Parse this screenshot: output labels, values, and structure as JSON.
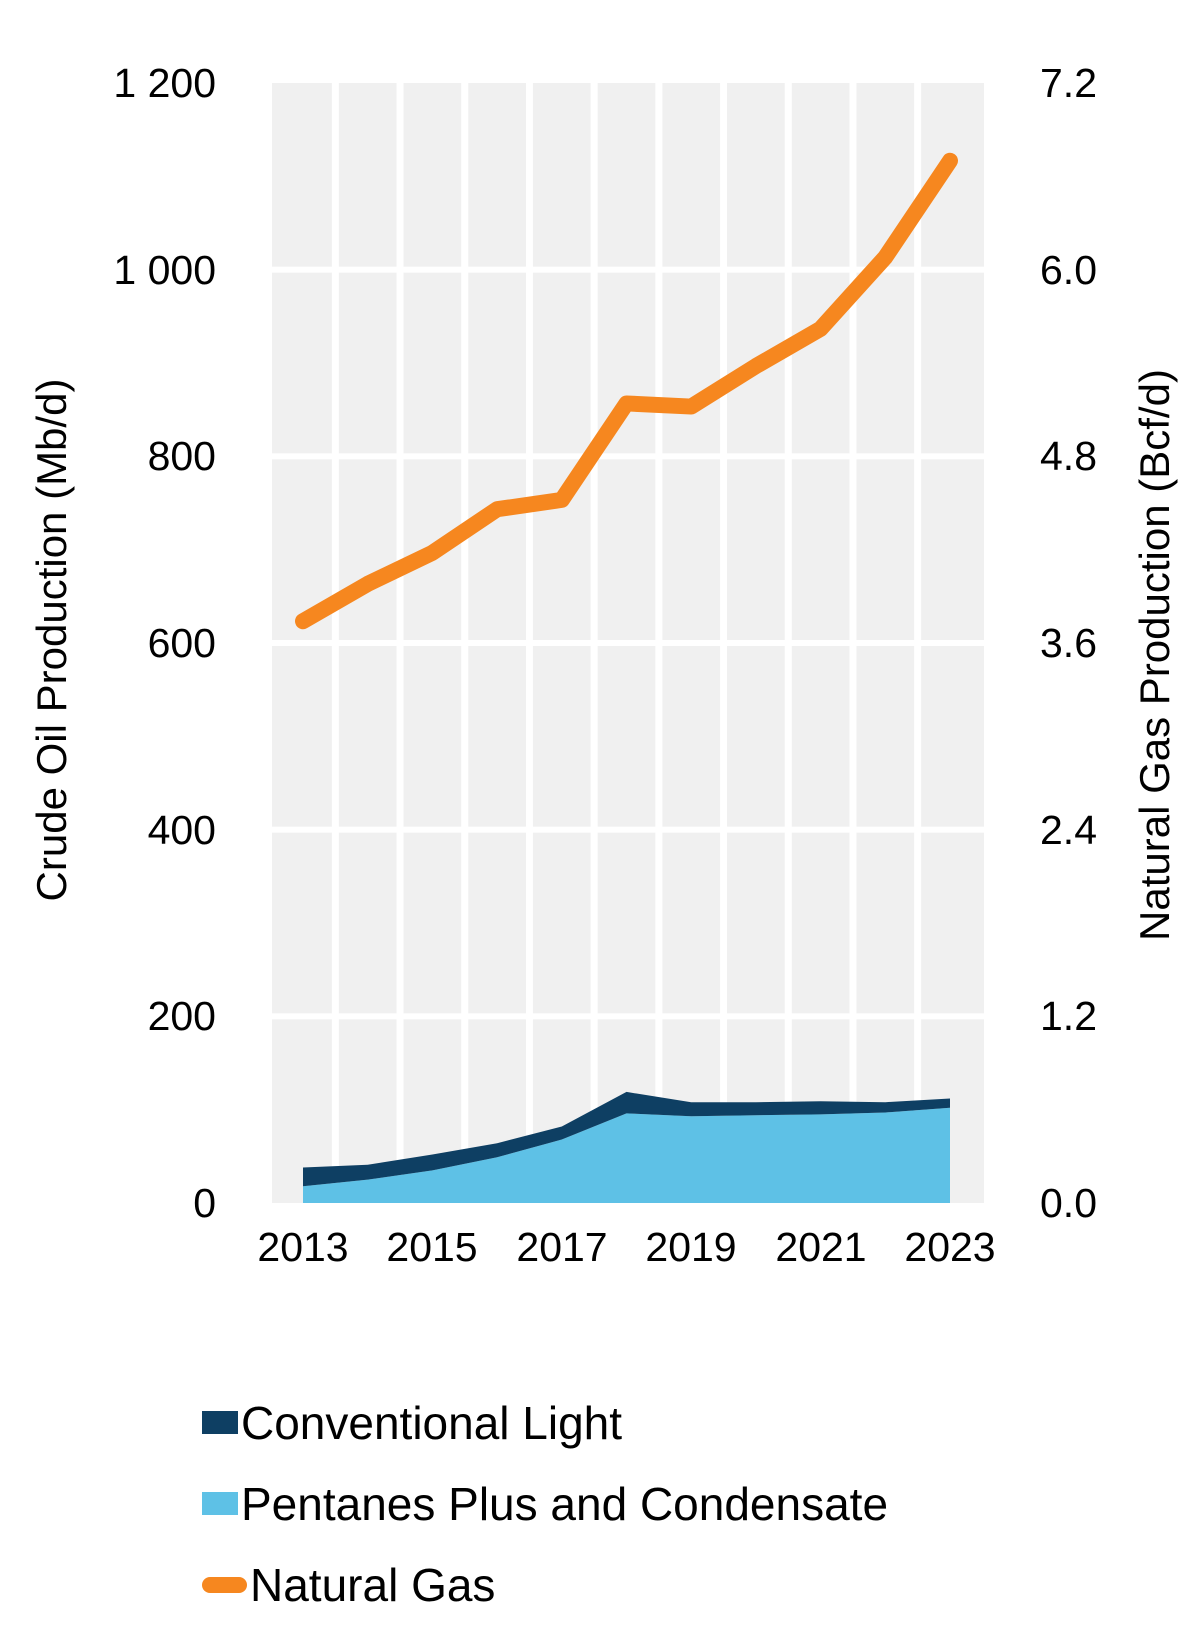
{
  "chart_data": {
    "type": "combo",
    "subtypes": [
      "stacked-area",
      "line"
    ],
    "x": [
      2013,
      2014,
      2015,
      2016,
      2017,
      2018,
      2019,
      2020,
      2021,
      2022,
      2023
    ],
    "x_tick_labels": [
      "2013",
      "2015",
      "2017",
      "2019",
      "2021",
      "2023"
    ],
    "left_axis": {
      "title": "Crude Oil Production (Mb/d)",
      "tick_labels": [
        "1 200",
        "1 000",
        "800",
        "600",
        "400",
        "200",
        "0"
      ],
      "tick_values": [
        1200,
        1000,
        800,
        600,
        400,
        200,
        0
      ],
      "range": [
        0,
        1200
      ]
    },
    "right_axis": {
      "title": "Natural Gas Production (Bcf/d)",
      "tick_labels": [
        "7.2",
        "6.0",
        "4.8",
        "3.6",
        "2.4",
        "1.2",
        "0.0"
      ],
      "tick_values": [
        7.2,
        6.0,
        4.8,
        3.6,
        2.4,
        1.2,
        0.0
      ],
      "range": [
        0,
        7.2
      ]
    },
    "series": [
      {
        "name": "Conventional Light",
        "type": "area",
        "axis": "left",
        "stack": "crude",
        "stack_order": 1,
        "color": "#0E3F63",
        "values": [
          20,
          16,
          17,
          15,
          14,
          23,
          15,
          14,
          14,
          11,
          10
        ]
      },
      {
        "name": "Pentanes Plus and Condensate",
        "type": "area",
        "axis": "left",
        "stack": "crude",
        "stack_order": 0,
        "color": "#5EC1E6",
        "values": [
          18,
          25,
          35,
          49,
          68,
          96,
          93,
          94,
          95,
          97,
          102
        ]
      },
      {
        "name": "Natural Gas",
        "type": "line",
        "axis": "right",
        "color": "#F6871F",
        "values": [
          3.74,
          3.98,
          4.18,
          4.46,
          4.52,
          5.14,
          5.12,
          5.38,
          5.62,
          6.08,
          6.7
        ]
      }
    ],
    "grid": {
      "band_color": "#F0F0F0",
      "line_color": "#FFFFFF",
      "grid_on": true
    },
    "legend_position": "bottom-left"
  },
  "legend": {
    "items": [
      {
        "label": "Conventional Light",
        "color": "#0E3F63",
        "shape": "square"
      },
      {
        "label": "Pentanes Plus and Condensate",
        "color": "#5EC1E6",
        "shape": "square"
      },
      {
        "label": "Natural Gas",
        "color": "#F6871F",
        "shape": "line"
      }
    ]
  }
}
